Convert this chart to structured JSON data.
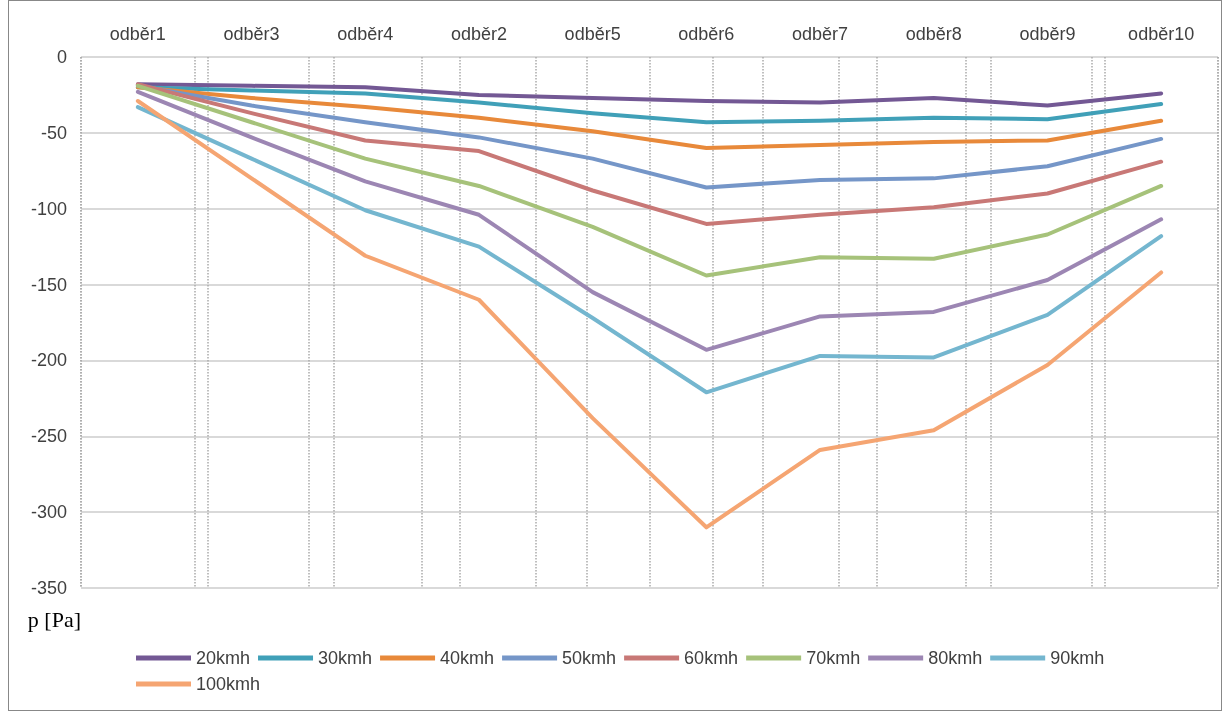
{
  "chart_data": {
    "type": "line",
    "ylabel": "p [Pa]",
    "categories": [
      "odběr1",
      "odběr3",
      "odběr4",
      "odběr2",
      "odběr5",
      "odběr6",
      "odběr7",
      "odběr8",
      "odběr9",
      "odběr10"
    ],
    "ylim": [
      -350,
      0
    ],
    "yticks": [
      -350,
      -300,
      -250,
      -200,
      -150,
      -100,
      -50,
      0
    ],
    "grid": true,
    "legend": "bottom",
    "marker": "none",
    "line_style": "solid",
    "series": [
      {
        "name": "20kmh",
        "color": "#735894",
        "values": [
          -18,
          -19,
          -20,
          -25,
          -27,
          -29,
          -30,
          -27,
          -32,
          -24
        ]
      },
      {
        "name": "30kmh",
        "color": "#40a0b8",
        "values": [
          -20,
          -22,
          -24,
          -30,
          -37,
          -43,
          -42,
          -40,
          -41,
          -31
        ]
      },
      {
        "name": "40kmh",
        "color": "#e8893a",
        "values": [
          -20,
          -27,
          -33,
          -40,
          -49,
          -60,
          -58,
          -56,
          -55,
          -42
        ]
      },
      {
        "name": "50kmh",
        "color": "#7596c8",
        "values": [
          -19,
          -32,
          -43,
          -53,
          -67,
          -86,
          -81,
          -80,
          -72,
          -54
        ]
      },
      {
        "name": "60kmh",
        "color": "#c87876",
        "values": [
          -18,
          -37,
          -55,
          -62,
          -88,
          -110,
          -104,
          -99,
          -90,
          -69
        ]
      },
      {
        "name": "70kmh",
        "color": "#a6c27a",
        "values": [
          -19,
          -43,
          -67,
          -85,
          -112,
          -144,
          -132,
          -133,
          -117,
          -85
        ]
      },
      {
        "name": "80kmh",
        "color": "#9c86b3",
        "values": [
          -23,
          -53,
          -82,
          -104,
          -155,
          -193,
          -171,
          -168,
          -147,
          -107
        ]
      },
      {
        "name": "90kmh",
        "color": "#74b6cf",
        "values": [
          -33,
          -67,
          -101,
          -125,
          -172,
          -221,
          -197,
          -198,
          -170,
          -118
        ]
      },
      {
        "name": "100kmh",
        "color": "#f5a572",
        "values": [
          -29,
          -80,
          -131,
          -160,
          -238,
          -310,
          -259,
          -246,
          -203,
          -142
        ]
      }
    ]
  }
}
